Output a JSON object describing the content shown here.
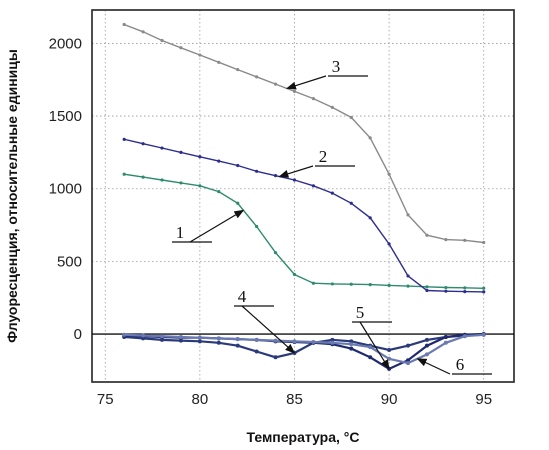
{
  "chart_data": {
    "type": "line",
    "xlabel": "Температура, °C",
    "ylabel": "Флуоресценция, относительные единицы",
    "xlim": [
      74.3,
      96.6
    ],
    "ylim": [
      -330,
      2230
    ],
    "x_ticks": [
      75,
      80,
      85,
      90,
      95
    ],
    "y_ticks": [
      0,
      500,
      1000,
      1500,
      2000
    ],
    "grid": true,
    "zero_line": true,
    "colors": {
      "series_1": "#2e8b6e",
      "series_2": "#2d2d8f",
      "series_3": "#8a8a8a",
      "series_4": "#2a3a7a",
      "series_5": "#1f2a70",
      "series_6": "#6a7ab0"
    },
    "series": [
      {
        "label": "1",
        "x": [
          76,
          77,
          78,
          79,
          80,
          81,
          82,
          83,
          84,
          85,
          86,
          87,
          88,
          89,
          90,
          91,
          92,
          93,
          94,
          95
        ],
        "y": [
          1100,
          1080,
          1060,
          1040,
          1020,
          980,
          900,
          740,
          560,
          410,
          350,
          345,
          343,
          340,
          335,
          330,
          325,
          320,
          318,
          315
        ]
      },
      {
        "label": "2",
        "x": [
          76,
          77,
          78,
          79,
          80,
          81,
          82,
          83,
          84,
          85,
          86,
          87,
          88,
          89,
          90,
          91,
          92,
          93,
          94,
          95
        ],
        "y": [
          1340,
          1310,
          1280,
          1250,
          1220,
          1190,
          1160,
          1120,
          1090,
          1060,
          1020,
          970,
          900,
          800,
          620,
          400,
          300,
          295,
          292,
          290
        ]
      },
      {
        "label": "3",
        "x": [
          76,
          77,
          78,
          79,
          80,
          81,
          82,
          83,
          84,
          85,
          86,
          87,
          88,
          89,
          90,
          91,
          92,
          93,
          94,
          95
        ],
        "y": [
          2130,
          2080,
          2020,
          1970,
          1920,
          1870,
          1820,
          1770,
          1720,
          1670,
          1620,
          1560,
          1490,
          1350,
          1100,
          820,
          680,
          650,
          645,
          630
        ]
      },
      {
        "label": "4",
        "x": [
          76,
          77,
          78,
          79,
          80,
          81,
          82,
          83,
          84,
          85,
          86,
          87,
          88,
          89,
          90,
          91,
          92,
          93,
          94,
          95
        ],
        "y": [
          -20,
          -30,
          -40,
          -45,
          -50,
          -60,
          -80,
          -120,
          -160,
          -130,
          -60,
          -40,
          -50,
          -80,
          -110,
          -80,
          -40,
          -20,
          -10,
          -5
        ]
      },
      {
        "label": "5",
        "x": [
          76,
          77,
          78,
          79,
          80,
          81,
          82,
          83,
          84,
          85,
          86,
          87,
          88,
          89,
          90,
          91,
          92,
          93,
          94,
          95
        ],
        "y": [
          -10,
          -15,
          -20,
          -25,
          -25,
          -30,
          -35,
          -40,
          -50,
          -55,
          -60,
          -70,
          -100,
          -160,
          -240,
          -180,
          -80,
          -20,
          -5,
          0
        ]
      },
      {
        "label": "6",
        "x": [
          76,
          77,
          78,
          79,
          80,
          81,
          82,
          83,
          84,
          85,
          86,
          87,
          88,
          89,
          90,
          91,
          92,
          93,
          94,
          95
        ],
        "y": [
          -5,
          -10,
          -15,
          -20,
          -25,
          -30,
          -35,
          -40,
          -45,
          -50,
          -55,
          -60,
          -70,
          -90,
          -170,
          -200,
          -140,
          -60,
          -15,
          -5
        ]
      }
    ]
  }
}
